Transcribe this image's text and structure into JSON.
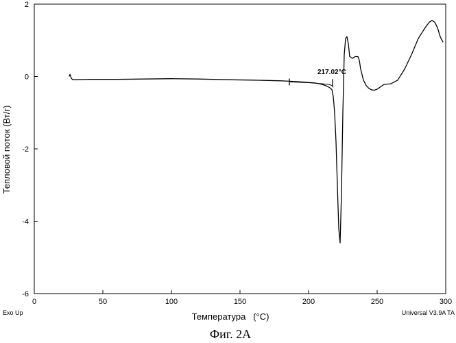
{
  "chart_data": {
    "type": "line",
    "title": "",
    "xlabel": "Температура   (°C)",
    "ylabel": "Тепловой поток (Вт/г)",
    "xlim": [
      0,
      300
    ],
    "ylim": [
      -6,
      2
    ],
    "x_ticks": [
      "0",
      "50",
      "100",
      "150",
      "200",
      "250",
      "300"
    ],
    "y_ticks": [
      "2",
      "0",
      "-2",
      "-4",
      "-6"
    ],
    "grid": false,
    "annotation": {
      "text": "217.02°C",
      "x": 217.02,
      "y": -0.17
    },
    "markers": [
      {
        "x": 186,
        "y": -0.15
      },
      {
        "x": 217.5,
        "y": -0.17
      }
    ],
    "series": [
      {
        "x": [
          25.5,
          26,
          27,
          28,
          30,
          40,
          60,
          80,
          100,
          120,
          140,
          160,
          180,
          186,
          195,
          205,
          210,
          213,
          215,
          217,
          218,
          219,
          220,
          221,
          222,
          223,
          224,
          225,
          226,
          227,
          228,
          229,
          230,
          232,
          234,
          236,
          237,
          238,
          240,
          242,
          244,
          246,
          248,
          250,
          255,
          260,
          265,
          270,
          275,
          280,
          285,
          288,
          290,
          292,
          294,
          296,
          298
        ],
        "y": [
          0.0,
          0.06,
          -0.05,
          -0.09,
          -0.09,
          -0.08,
          -0.08,
          -0.07,
          -0.06,
          -0.07,
          -0.09,
          -0.1,
          -0.12,
          -0.13,
          -0.15,
          -0.18,
          -0.22,
          -0.26,
          -0.3,
          -0.36,
          -0.55,
          -1.0,
          -1.8,
          -3.0,
          -4.2,
          -4.6,
          -3.2,
          -1.0,
          0.6,
          1.05,
          1.1,
          0.9,
          0.55,
          0.5,
          0.55,
          0.55,
          0.45,
          0.2,
          -0.1,
          -0.25,
          -0.33,
          -0.37,
          -0.38,
          -0.35,
          -0.22,
          -0.2,
          -0.1,
          0.2,
          0.6,
          1.05,
          1.35,
          1.5,
          1.55,
          1.5,
          1.35,
          1.1,
          0.95
        ]
      },
      {
        "x": [
          186,
          200,
          210,
          215,
          217,
          218
        ],
        "y": [
          -0.15,
          -0.17,
          -0.2,
          -0.22,
          -0.25,
          -0.3
        ]
      }
    ]
  },
  "corner_left": "Exo Up",
  "corner_right": "Universal V3.9A TA",
  "caption": "Фиг. 2А"
}
